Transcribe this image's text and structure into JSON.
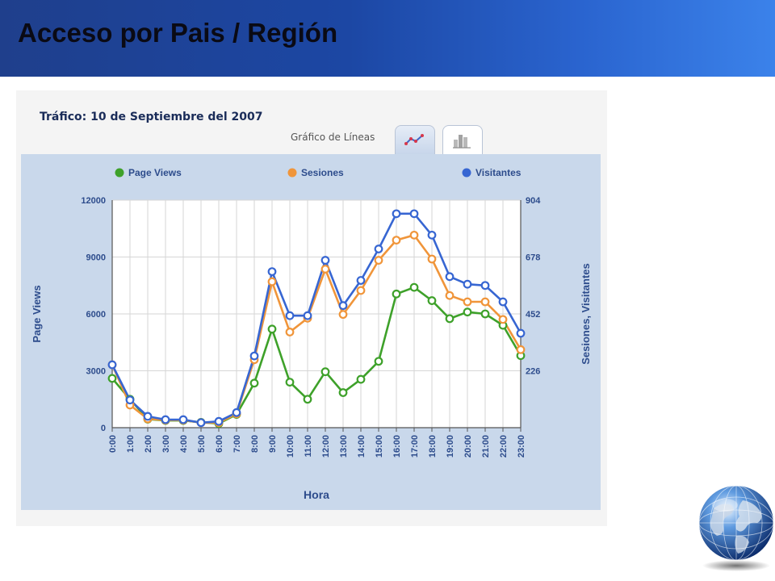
{
  "page_title": "Acceso por Pais / Región",
  "panel": {
    "title": "Tráfico: 10 de Septiembre del 2007",
    "tab_label": "Gráfico de Líneas",
    "tabs": [
      {
        "icon": "line-chart-icon",
        "active": true
      },
      {
        "icon": "bar-chart-icon",
        "active": false
      }
    ]
  },
  "chart_data": {
    "type": "line",
    "xlabel": "Hora",
    "ylabel": "Page Views",
    "y2label": "Sesiones, Visitantes",
    "ylim": [
      0,
      12000
    ],
    "y2lim": [
      0,
      904
    ],
    "yticks": [
      "0",
      "3000",
      "6000",
      "9000",
      "12000"
    ],
    "y2ticks": [
      "226",
      "452",
      "678",
      "904"
    ],
    "y2tick_values": [
      226,
      452,
      678,
      904
    ],
    "legend_position": "top",
    "grid": true,
    "x": [
      "0:00",
      "1:00",
      "2:00",
      "3:00",
      "4:00",
      "5:00",
      "6:00",
      "7:00",
      "8:00",
      "9:00",
      "10:00",
      "11:00",
      "12:00",
      "13:00",
      "14:00",
      "15:00",
      "16:00",
      "17:00",
      "18:00",
      "19:00",
      "20:00",
      "21:00",
      "22:00",
      "23:00"
    ],
    "series": [
      {
        "name": "Page Views",
        "axis": "left",
        "color": "#3ea12a",
        "values": [
          2600,
          1500,
          450,
          380,
          380,
          280,
          220,
          700,
          2350,
          5200,
          2400,
          1500,
          2950,
          1850,
          2550,
          3500,
          7050,
          7400,
          6700,
          5750,
          6100,
          6000,
          5400,
          3800
        ]
      },
      {
        "name": "Sesiones",
        "axis": "right",
        "color": "#f0953a",
        "values": [
          250,
          90,
          35,
          30,
          30,
          20,
          20,
          55,
          270,
          580,
          380,
          435,
          630,
          450,
          545,
          665,
          745,
          765,
          670,
          525,
          500,
          500,
          430,
          310
        ]
      },
      {
        "name": "Visitantes",
        "axis": "right",
        "color": "#3766d2",
        "values": [
          250,
          110,
          45,
          32,
          32,
          20,
          25,
          60,
          285,
          620,
          445,
          445,
          665,
          485,
          585,
          710,
          850,
          850,
          765,
          600,
          570,
          565,
          500,
          375
        ]
      }
    ]
  }
}
